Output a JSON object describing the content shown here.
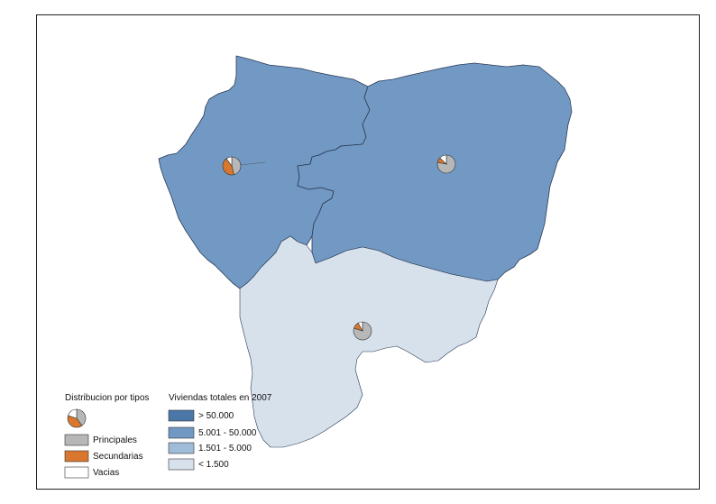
{
  "legend": {
    "distribution": {
      "title": "Distribucion por tipos",
      "items": [
        {
          "label": "Principales",
          "color": "#b7b7b7"
        },
        {
          "label": "Secundarias",
          "color": "#d9772e"
        },
        {
          "label": "Vacias",
          "color": "#ffffff"
        }
      ]
    },
    "totals": {
      "title": "Viviendas totales en 2007",
      "classes": [
        {
          "label": "> 50.000",
          "color": "#4a77a8"
        },
        {
          "label": "5.001 - 50.000",
          "color": "#7299c4"
        },
        {
          "label": "1.501 - 5.000",
          "color": "#9fbcd8"
        },
        {
          "label": "< 1.500",
          "color": "#d7e1ec"
        }
      ]
    }
  },
  "regions": [
    {
      "class": "5.001 - 50.000",
      "fill": "#7299c4",
      "pie": {
        "principales": 0.46,
        "secundarias": 0.44,
        "vacias": 0.1
      }
    },
    {
      "class": "5.001 - 50.000",
      "fill": "#7299c4",
      "pie": {
        "principales": 0.78,
        "secundarias": 0.09,
        "vacias": 0.13
      }
    },
    {
      "class": "< 1.500",
      "fill": "#d7e1ec",
      "pie": {
        "principales": 0.8,
        "secundarias": 0.12,
        "vacias": 0.08
      }
    }
  ]
}
